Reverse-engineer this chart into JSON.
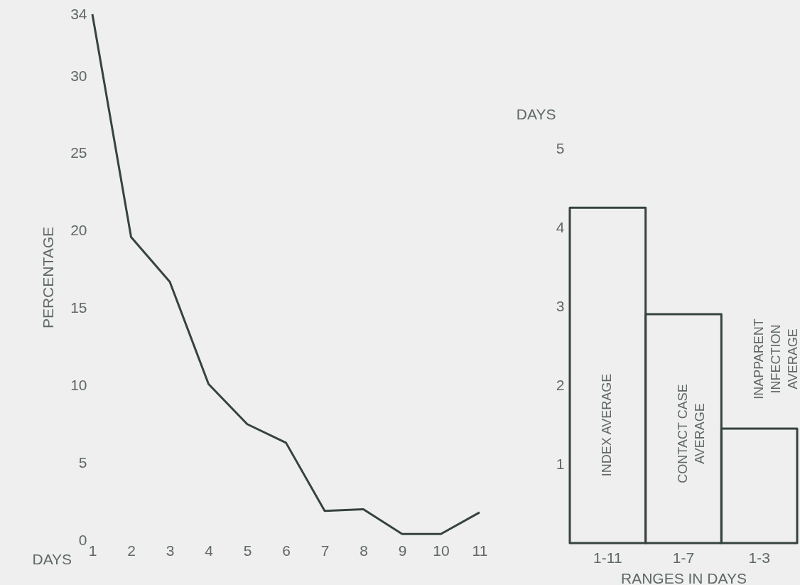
{
  "chart_data": [
    {
      "type": "line",
      "ylabel": "PERCENTAGE",
      "xlabel": "DAYS",
      "categories": [
        "1",
        "2",
        "3",
        "4",
        "5",
        "6",
        "7",
        "8",
        "9",
        "10",
        "11"
      ],
      "series": [
        {
          "color": "#36433e",
          "values": [
            34,
            19.6,
            16.7,
            10.1,
            7.5,
            6.3,
            1.9,
            2.0,
            0.4,
            0.4,
            1.8
          ]
        }
      ],
      "ylim": [
        0,
        34
      ],
      "yticks": [
        0,
        5,
        10,
        15,
        20,
        25,
        30,
        34
      ],
      "grid": false,
      "marker": "none",
      "line_style": "solid"
    },
    {
      "type": "bar",
      "ylabel": "DAYS",
      "xlabel": "RANGES IN DAYS",
      "categories": [
        "1-11",
        "1-7",
        "1-3"
      ],
      "series": [
        {
          "color": "#36433e",
          "values": [
            4.25,
            2.9,
            1.45
          ]
        }
      ],
      "ylim": [
        0,
        5
      ],
      "yticks": [
        1,
        2,
        3,
        4,
        5
      ],
      "grid": false,
      "annotations": [
        "INDEX AVERAGE",
        "CONTACT CASE\nAVERAGE",
        "INAPPARENT\nINFECTION\nAVERAGE"
      ]
    }
  ]
}
